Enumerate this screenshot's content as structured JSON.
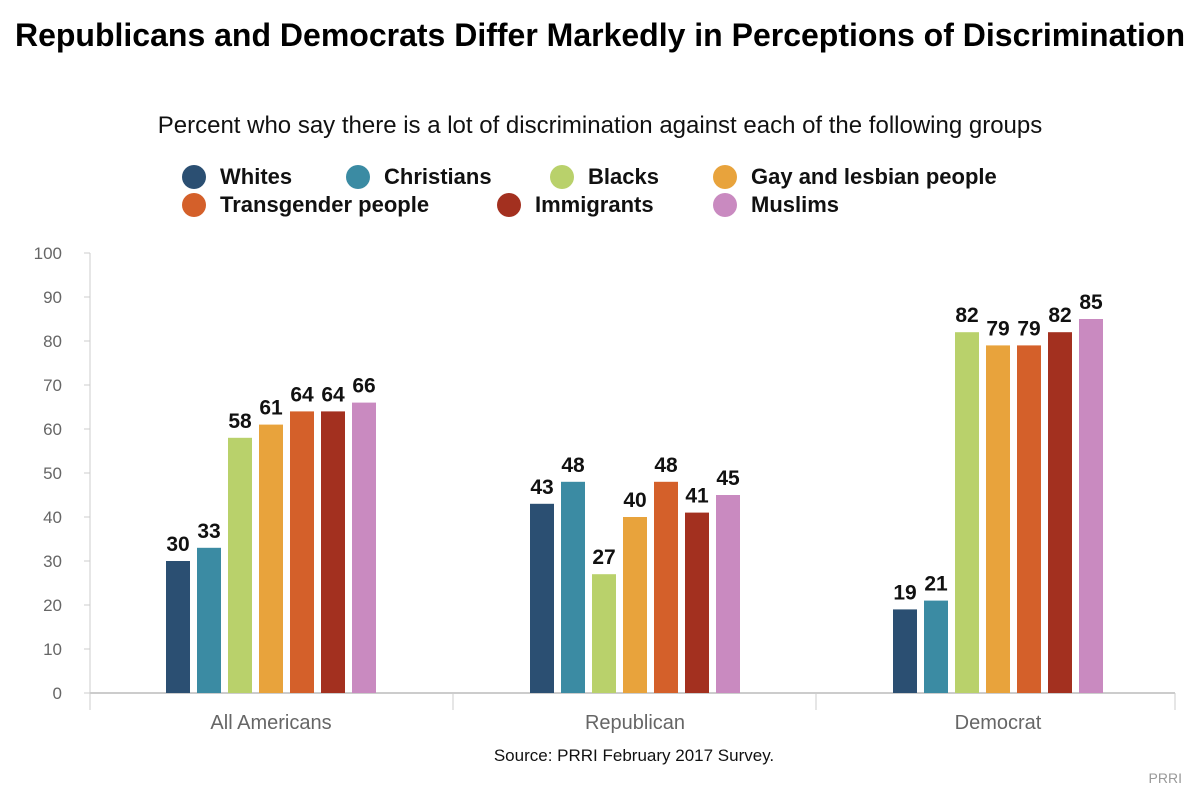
{
  "chart_data": {
    "type": "bar",
    "title": "Republicans and Democrats Differ Markedly in Perceptions of Discrimination",
    "subtitle": "Percent who say there is a lot of discrimination against each of the following groups",
    "categories": [
      "All Americans",
      "Republican",
      "Democrat"
    ],
    "series": [
      {
        "name": "Whites",
        "color": "#2b4f72",
        "values": [
          30,
          43,
          19
        ]
      },
      {
        "name": "Christians",
        "color": "#3b8ba3",
        "values": [
          33,
          48,
          21
        ]
      },
      {
        "name": "Blacks",
        "color": "#b9d16b",
        "values": [
          58,
          27,
          82
        ]
      },
      {
        "name": "Gay and lesbian people",
        "color": "#e8a33c",
        "values": [
          61,
          40,
          79
        ]
      },
      {
        "name": "Transgender people",
        "color": "#d4602a",
        "values": [
          64,
          48,
          79
        ]
      },
      {
        "name": "Immigrants",
        "color": "#a3301f",
        "values": [
          64,
          41,
          82
        ]
      },
      {
        "name": "Muslims",
        "color": "#c98ac0",
        "values": [
          66,
          45,
          85
        ]
      }
    ],
    "ylim": [
      0,
      100
    ],
    "yticks": [
      0,
      10,
      20,
      30,
      40,
      50,
      60,
      70,
      80,
      90,
      100
    ],
    "grid": false,
    "legend": "top",
    "source": "Source: PRRI February 2017 Survey.",
    "credit": "PRRI"
  }
}
